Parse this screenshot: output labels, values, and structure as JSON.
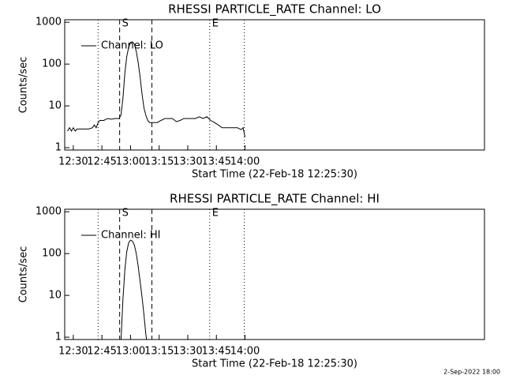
{
  "chart_data": [
    {
      "type": "line",
      "title": "RHESSI PARTICLE_RATE Channel: LO",
      "x_label": "Start Time (22-Feb-18 12:25:30)",
      "y_label": "Counts/sec",
      "xlim": [
        745.5,
        965.5
      ],
      "xticks": [
        {
          "value": 750,
          "label": "12:30"
        },
        {
          "value": 765,
          "label": "12:45"
        },
        {
          "value": 780,
          "label": "13:00"
        },
        {
          "value": 795,
          "label": "13:15"
        },
        {
          "value": 810,
          "label": "13:30"
        },
        {
          "value": 825,
          "label": "13:45"
        },
        {
          "value": 840,
          "label": "14:00"
        }
      ],
      "ylim": [
        0.88,
        1150
      ],
      "yticks": [
        1,
        10,
        100,
        1000
      ],
      "log_y": true,
      "legend": "upper left",
      "markers": [
        {
          "x": 763,
          "style": "dotted"
        },
        {
          "x": 774.3,
          "style": "dashed",
          "label": "S"
        },
        {
          "x": 791.2,
          "style": "dashed"
        },
        {
          "x": 821.5,
          "style": "dotted",
          "label": "E"
        },
        {
          "x": 839.6,
          "style": "dotted"
        }
      ],
      "series": [
        {
          "name": "Channel: LO",
          "color": "#000000",
          "x": [
            747,
            748,
            749,
            750,
            751,
            752,
            754,
            756,
            758,
            760,
            761,
            762,
            763,
            764,
            766,
            768,
            770,
            772,
            774,
            775,
            776,
            777,
            778,
            779,
            780,
            781,
            782,
            783,
            784,
            785,
            786,
            787,
            788,
            789,
            790,
            792,
            794,
            796,
            798,
            800,
            802,
            804,
            806,
            808,
            810,
            812,
            814,
            816,
            818,
            820,
            822,
            824,
            826,
            828,
            830,
            832,
            834,
            836,
            838,
            839,
            840
          ],
          "values": [
            2.5,
            3,
            2.5,
            3,
            2.5,
            2.8,
            2.8,
            2.8,
            2.8,
            3,
            3.5,
            3,
            4,
            4.5,
            4.5,
            5,
            4.8,
            5,
            5,
            6,
            15,
            60,
            150,
            250,
            330,
            340,
            300,
            200,
            110,
            50,
            20,
            9,
            6,
            4.5,
            4,
            4,
            4,
            4.5,
            5,
            5,
            5,
            4.2,
            4.5,
            5,
            5,
            5,
            5,
            5.5,
            5,
            5.5,
            4.5,
            4,
            3.5,
            3,
            3,
            3,
            3,
            3,
            2.7,
            3,
            1.8
          ]
        }
      ]
    },
    {
      "type": "line",
      "title": "RHESSI PARTICLE_RATE Channel: HI",
      "x_label": "Start Time (22-Feb-18 12:25:30)",
      "y_label": "Counts/sec",
      "xlim": [
        745.5,
        965.5
      ],
      "xticks": [
        {
          "value": 750,
          "label": "12:30"
        },
        {
          "value": 765,
          "label": "12:45"
        },
        {
          "value": 780,
          "label": "13:00"
        },
        {
          "value": 795,
          "label": "13:15"
        },
        {
          "value": 810,
          "label": "13:30"
        },
        {
          "value": 825,
          "label": "13:45"
        },
        {
          "value": 840,
          "label": "14:00"
        }
      ],
      "ylim": [
        0.88,
        1150
      ],
      "yticks": [
        1,
        10,
        100,
        1000
      ],
      "log_y": true,
      "legend": "upper left",
      "markers": [
        {
          "x": 763,
          "style": "dotted"
        },
        {
          "x": 774.3,
          "style": "dashed",
          "label": "S"
        },
        {
          "x": 791.2,
          "style": "dashed"
        },
        {
          "x": 821.5,
          "style": "dotted",
          "label": "E"
        },
        {
          "x": 839.6,
          "style": "dotted"
        }
      ],
      "series": [
        {
          "name": "Channel: HI",
          "color": "#000000",
          "x": [
            775,
            776,
            777,
            778,
            779,
            780,
            781,
            782,
            783,
            784,
            785,
            786,
            787,
            788,
            788.5
          ],
          "values": [
            0.8,
            8,
            40,
            110,
            180,
            210,
            200,
            160,
            100,
            50,
            22,
            9.5,
            3.5,
            1.2,
            0.8
          ]
        }
      ]
    }
  ],
  "footer": "2-Sep-2022 18:00"
}
